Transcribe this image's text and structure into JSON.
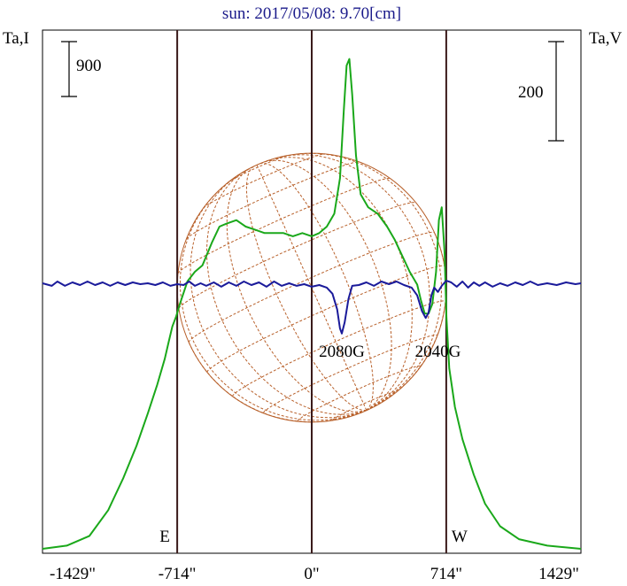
{
  "chart_data": {
    "type": "line",
    "title": "sun: 2017/05/08: 9.70[cm]",
    "left_axis_label": "Ta,I",
    "right_axis_label": "Ta,V",
    "left_scale_bar": "900",
    "right_scale_bar": "200",
    "x_tick_labels": [
      "-1429\"",
      "-714\"",
      "0\"",
      "714\"",
      "1429\""
    ],
    "x_ticks": [
      -1429,
      -714,
      0,
      714,
      1429
    ],
    "x_range": [
      -1429,
      1429
    ],
    "limb_markers": [
      {
        "label": "E",
        "x": -714
      },
      {
        "label": "W",
        "x": 714
      }
    ],
    "annotations": [
      {
        "text": "2080G",
        "x": 160
      },
      {
        "text": "2040G",
        "x": 670
      }
    ],
    "colors": {
      "intensity": "#1aa81a",
      "polarization": "#1a1a9a",
      "disk": "#b8602a",
      "vertical_lines": "#3a1a1a",
      "title": "#1a1a8a"
    },
    "series": [
      {
        "key": "stokes_I",
        "color": "#1aa81a",
        "points": [
          [
            -1429,
            0.0
          ],
          [
            -1300,
            0.01
          ],
          [
            -1180,
            0.04
          ],
          [
            -1080,
            0.12
          ],
          [
            -1000,
            0.22
          ],
          [
            -930,
            0.32
          ],
          [
            -870,
            0.42
          ],
          [
            -820,
            0.51
          ],
          [
            -780,
            0.59
          ],
          [
            -760,
            0.64
          ],
          [
            -740,
            0.69
          ],
          [
            -720,
            0.72
          ],
          [
            -700,
            0.76
          ],
          [
            -660,
            0.83
          ],
          [
            -620,
            0.86
          ],
          [
            -580,
            0.88
          ],
          [
            -530,
            0.95
          ],
          [
            -490,
            1.0
          ],
          [
            -450,
            1.01
          ],
          [
            -400,
            1.02
          ],
          [
            -350,
            1.0
          ],
          [
            -300,
            0.99
          ],
          [
            -250,
            0.98
          ],
          [
            -200,
            0.98
          ],
          [
            -150,
            0.98
          ],
          [
            -100,
            0.97
          ],
          [
            -50,
            0.98
          ],
          [
            0,
            0.97
          ],
          [
            40,
            0.98
          ],
          [
            80,
            1.0
          ],
          [
            120,
            1.04
          ],
          [
            150,
            1.15
          ],
          [
            170,
            1.36
          ],
          [
            185,
            1.5
          ],
          [
            200,
            1.52
          ],
          [
            215,
            1.41
          ],
          [
            235,
            1.22
          ],
          [
            260,
            1.1
          ],
          [
            300,
            1.06
          ],
          [
            350,
            1.04
          ],
          [
            400,
            1.0
          ],
          [
            440,
            0.96
          ],
          [
            480,
            0.91
          ],
          [
            520,
            0.86
          ],
          [
            560,
            0.82
          ],
          [
            580,
            0.77
          ],
          [
            600,
            0.73
          ],
          [
            620,
            0.73
          ],
          [
            640,
            0.76
          ],
          [
            660,
            0.86
          ],
          [
            675,
            1.02
          ],
          [
            690,
            1.06
          ],
          [
            705,
            0.92
          ],
          [
            715,
            0.72
          ],
          [
            730,
            0.56
          ],
          [
            760,
            0.44
          ],
          [
            800,
            0.34
          ],
          [
            860,
            0.23
          ],
          [
            920,
            0.14
          ],
          [
            1000,
            0.07
          ],
          [
            1100,
            0.03
          ],
          [
            1250,
            0.01
          ],
          [
            1429,
            0.0
          ]
        ]
      },
      {
        "key": "stokes_V",
        "color": "#1a1a9a",
        "points": [
          [
            -1429,
            0.0
          ],
          [
            -1380,
            -0.03
          ],
          [
            -1350,
            0.02
          ],
          [
            -1310,
            -0.03
          ],
          [
            -1270,
            0.01
          ],
          [
            -1230,
            -0.02
          ],
          [
            -1190,
            0.02
          ],
          [
            -1150,
            -0.02
          ],
          [
            -1110,
            0.01
          ],
          [
            -1070,
            -0.03
          ],
          [
            -1030,
            0.01
          ],
          [
            -990,
            -0.02
          ],
          [
            -950,
            0.01
          ],
          [
            -910,
            -0.01
          ],
          [
            -870,
            0.0
          ],
          [
            -830,
            -0.02
          ],
          [
            -790,
            0.01
          ],
          [
            -750,
            -0.03
          ],
          [
            -714,
            -0.01
          ],
          [
            -680,
            -0.02
          ],
          [
            -650,
            0.02
          ],
          [
            -620,
            -0.03
          ],
          [
            -590,
            0.0
          ],
          [
            -560,
            -0.03
          ],
          [
            -520,
            0.01
          ],
          [
            -480,
            -0.04
          ],
          [
            -440,
            0.01
          ],
          [
            -400,
            -0.03
          ],
          [
            -360,
            0.02
          ],
          [
            -320,
            -0.02
          ],
          [
            -280,
            0.01
          ],
          [
            -240,
            -0.04
          ],
          [
            -200,
            0.02
          ],
          [
            -160,
            -0.03
          ],
          [
            -120,
            0.0
          ],
          [
            -80,
            -0.03
          ],
          [
            -40,
            -0.01
          ],
          [
            0,
            -0.04
          ],
          [
            40,
            -0.02
          ],
          [
            80,
            -0.05
          ],
          [
            110,
            -0.12
          ],
          [
            135,
            -0.3
          ],
          [
            150,
            -0.52
          ],
          [
            160,
            -0.58
          ],
          [
            175,
            -0.45
          ],
          [
            195,
            -0.18
          ],
          [
            215,
            -0.03
          ],
          [
            250,
            -0.02
          ],
          [
            290,
            0.01
          ],
          [
            330,
            -0.03
          ],
          [
            370,
            0.02
          ],
          [
            410,
            -0.01
          ],
          [
            450,
            0.02
          ],
          [
            490,
            -0.02
          ],
          [
            530,
            -0.05
          ],
          [
            560,
            -0.14
          ],
          [
            585,
            -0.32
          ],
          [
            605,
            -0.4
          ],
          [
            620,
            -0.34
          ],
          [
            635,
            -0.14
          ],
          [
            650,
            -0.05
          ],
          [
            670,
            -0.1
          ],
          [
            690,
            -0.03
          ],
          [
            714,
            0.03
          ],
          [
            740,
            0.01
          ],
          [
            770,
            -0.04
          ],
          [
            800,
            0.02
          ],
          [
            830,
            -0.05
          ],
          [
            860,
            0.01
          ],
          [
            890,
            -0.03
          ],
          [
            920,
            0.01
          ],
          [
            960,
            -0.04
          ],
          [
            1000,
            0.0
          ],
          [
            1040,
            -0.03
          ],
          [
            1080,
            0.01
          ],
          [
            1120,
            -0.02
          ],
          [
            1160,
            0.02
          ],
          [
            1200,
            -0.02
          ],
          [
            1250,
            0.0
          ],
          [
            1300,
            -0.02
          ],
          [
            1350,
            0.01
          ],
          [
            1400,
            -0.01
          ],
          [
            1429,
            0.0
          ]
        ]
      }
    ],
    "grid": false,
    "legend": "none"
  }
}
